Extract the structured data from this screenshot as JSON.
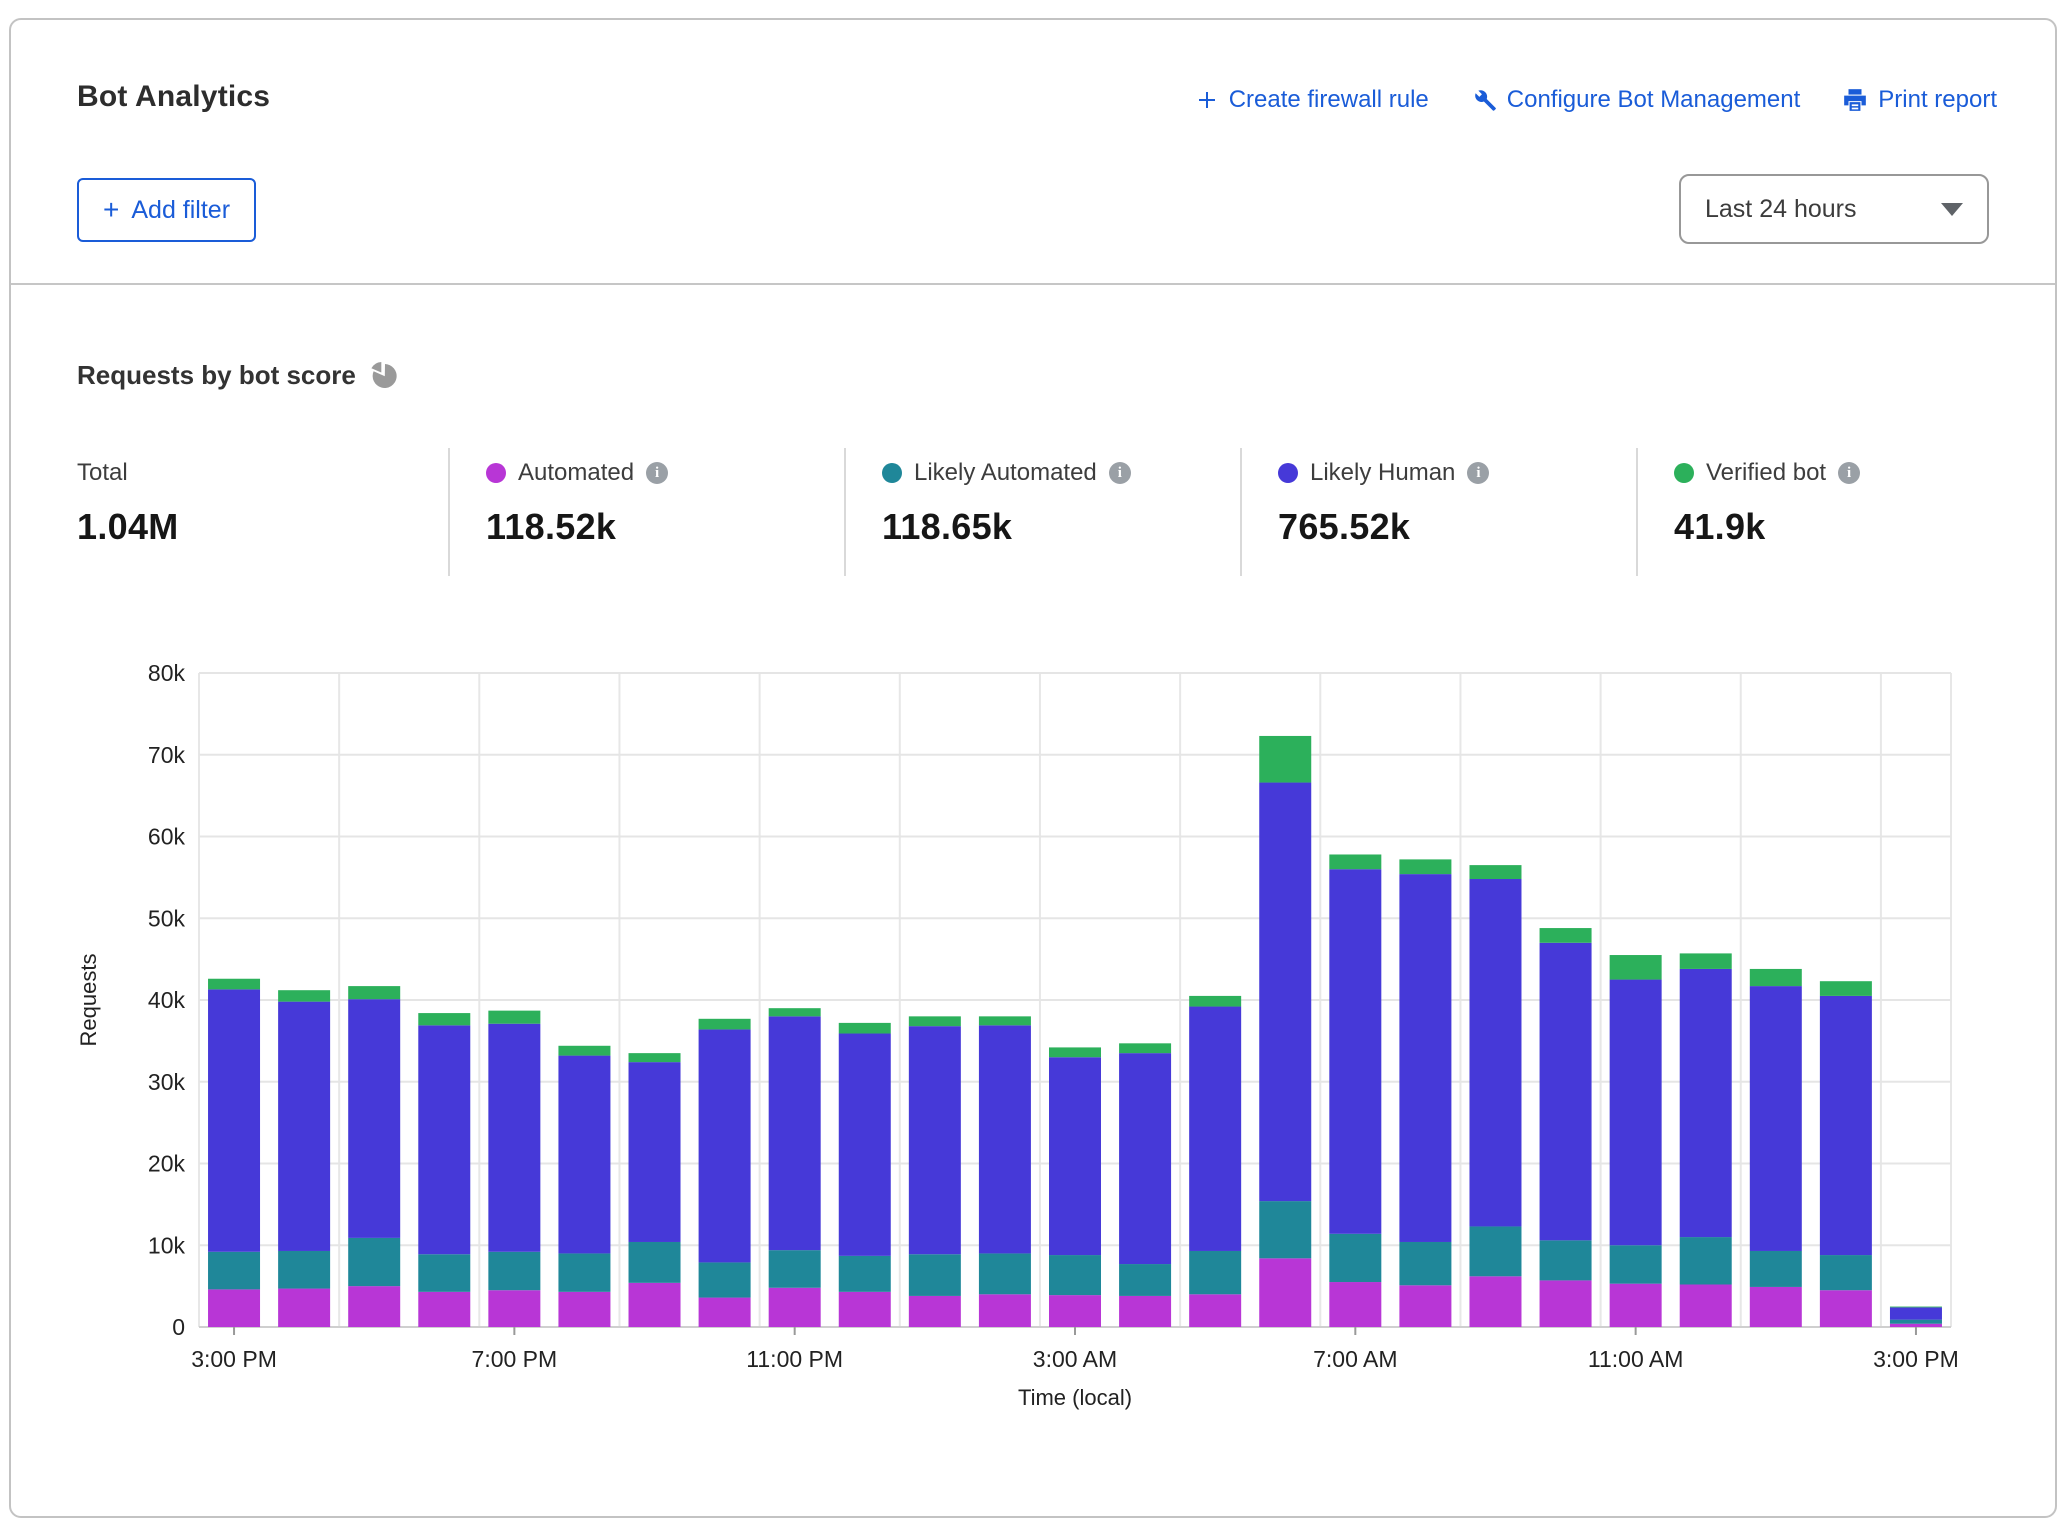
{
  "header": {
    "title": "Bot Analytics",
    "actions": [
      {
        "label": "Create firewall rule",
        "icon": "plus-icon"
      },
      {
        "label": "Configure Bot Management",
        "icon": "wrench-icon"
      },
      {
        "label": "Print report",
        "icon": "printer-icon"
      }
    ],
    "add_filter_label": "Add filter",
    "time_range_value": "Last 24 hours"
  },
  "section": {
    "heading": "Requests by bot score",
    "stats": [
      {
        "label": "Total",
        "value": "1.04M",
        "color": null
      },
      {
        "label": "Automated",
        "value": "118.52k",
        "color": "#b836d6"
      },
      {
        "label": "Likely Automated",
        "value": "118.65k",
        "color": "#1f8799"
      },
      {
        "label": "Likely Human",
        "value": "765.52k",
        "color": "#4639d8"
      },
      {
        "label": "Verified bot",
        "value": "41.9k",
        "color": "#2cb05b"
      }
    ]
  },
  "chart_data": {
    "type": "bar",
    "stacked": true,
    "title": "Requests by bot score",
    "xlabel": "Time (local)",
    "ylabel": "Requests",
    "ylim": [
      0,
      80000
    ],
    "ytick_step": 10000,
    "ytick_labels": [
      "0",
      "10k",
      "20k",
      "30k",
      "40k",
      "50k",
      "60k",
      "70k",
      "80k"
    ],
    "grid": true,
    "x_tick_label_every": 4,
    "categories": [
      "3:00 PM",
      "4:00 PM",
      "5:00 PM",
      "6:00 PM",
      "7:00 PM",
      "8:00 PM",
      "9:00 PM",
      "10:00 PM",
      "11:00 PM",
      "12:00 AM",
      "1:00 AM",
      "2:00 AM",
      "3:00 AM",
      "4:00 AM",
      "5:00 AM",
      "6:00 AM",
      "7:00 AM",
      "8:00 AM",
      "9:00 AM",
      "10:00 AM",
      "11:00 AM",
      "12:00 PM",
      "1:00 PM",
      "2:00 PM",
      "3:00 PM"
    ],
    "series": [
      {
        "name": "Automated",
        "color": "#b836d6",
        "values": [
          4600,
          4700,
          5000,
          4300,
          4500,
          4300,
          5400,
          3600,
          4800,
          4300,
          3800,
          4000,
          3900,
          3800,
          4000,
          8400,
          5500,
          5100,
          6200,
          5700,
          5300,
          5200,
          4900,
          4500,
          400
        ]
      },
      {
        "name": "Likely Automated",
        "color": "#1f8799",
        "values": [
          4600,
          4600,
          5900,
          4600,
          4700,
          4700,
          5000,
          4300,
          4600,
          4400,
          5100,
          5000,
          4900,
          3900,
          5300,
          7000,
          5900,
          5300,
          6100,
          4900,
          4700,
          5800,
          4400,
          4300,
          500
        ]
      },
      {
        "name": "Likely Human",
        "color": "#4639d8",
        "values": [
          32100,
          30500,
          29200,
          28000,
          27900,
          24200,
          22000,
          28500,
          28600,
          27200,
          27900,
          27900,
          24200,
          25800,
          29900,
          51200,
          44600,
          45000,
          42500,
          36400,
          32500,
          32800,
          32400,
          31700,
          1500
        ]
      },
      {
        "name": "Verified bot",
        "color": "#2cb05b",
        "values": [
          1300,
          1400,
          1600,
          1500,
          1600,
          1200,
          1100,
          1300,
          1000,
          1300,
          1200,
          1100,
          1200,
          1200,
          1300,
          5700,
          1800,
          1800,
          1700,
          1800,
          3000,
          1900,
          2100,
          1800,
          100
        ]
      }
    ]
  }
}
